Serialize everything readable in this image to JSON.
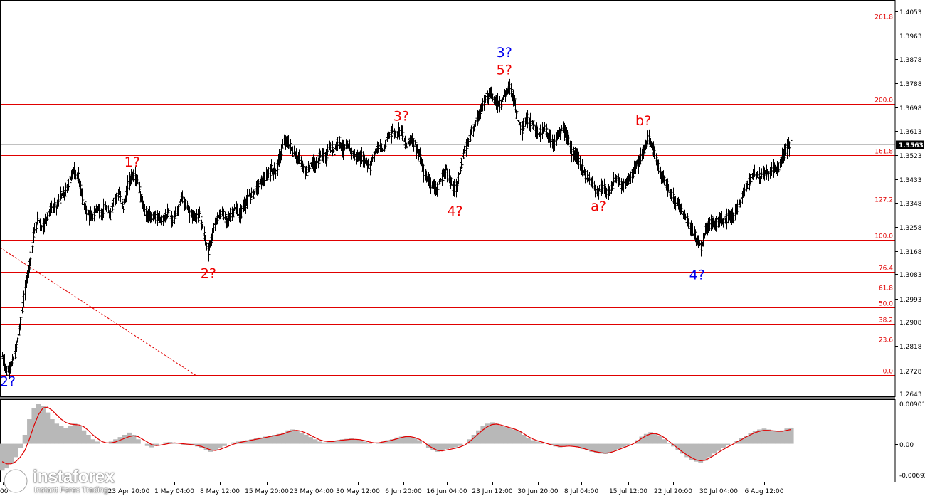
{
  "chart_data": {
    "type": "line",
    "symbol_style": "ohlc-bars",
    "price_axis": {
      "min": 1.2643,
      "max": 1.4053,
      "ticks": [
        "1.4053",
        "1.3963",
        "1.3878",
        "1.3788",
        "1.3698",
        "1.3613",
        "1.3523",
        "1.3433",
        "1.3348",
        "1.3258",
        "1.3168",
        "1.3083",
        "1.2993",
        "1.2908",
        "1.2818",
        "1.2728",
        "1.2643"
      ],
      "current_price": "1.3563",
      "current_price_value": 1.3563
    },
    "time_axis": {
      "labels": [
        "00",
        "23 Apr 20:00",
        "1 May 04:00",
        "8 May 12:00",
        "15 May 20:00",
        "23 May 04:00",
        "30 May 12:00",
        "6 Jun 20:00",
        "16 Jun 04:00",
        "23 Jun 12:00",
        "30 Jun 20:00",
        "8 Jul 04:00",
        "15 Jul 12:00",
        "22 Jul 20:00",
        "30 Jul 04:00",
        "6 Aug 12:00"
      ]
    },
    "fibonacci_levels": [
      {
        "label": "0.0",
        "price": 1.271
      },
      {
        "label": "23.6",
        "price": 1.2828
      },
      {
        "label": "38.2",
        "price": 1.2901
      },
      {
        "label": "50.0",
        "price": 1.296
      },
      {
        "label": "61.8",
        "price": 1.3018
      },
      {
        "label": "76.4",
        "price": 1.3092
      },
      {
        "label": "100.0",
        "price": 1.321
      },
      {
        "label": "127.2",
        "price": 1.3345
      },
      {
        "label": "161.8",
        "price": 1.3522
      },
      {
        "label": "200.0",
        "price": 1.3712
      },
      {
        "label": "261.8",
        "price": 1.402
      }
    ],
    "wave_labels": [
      {
        "text": "2?",
        "color": "#0000ee",
        "date_index": 0,
        "price": 1.267
      },
      {
        "text": "1?",
        "color": "#ee0000",
        "date_index": 29,
        "price": 1.348
      },
      {
        "text": "2?",
        "color": "#ee0000",
        "date_index": 46,
        "price": 1.307
      },
      {
        "text": "3?",
        "color": "#ee0000",
        "date_index": 89,
        "price": 1.365
      },
      {
        "text": "4?",
        "color": "#ee0000",
        "date_index": 101,
        "price": 1.33
      },
      {
        "text": "3?",
        "color": "#0000ee",
        "date_index": 112,
        "price": 1.3885
      },
      {
        "text": "5?",
        "color": "#ee0000",
        "date_index": 112,
        "price": 1.382
      },
      {
        "text": "a?",
        "color": "#ee0000",
        "date_index": 133,
        "price": 1.3318
      },
      {
        "text": "b?",
        "color": "#ee0000",
        "date_index": 143,
        "price": 1.3633
      },
      {
        "text": "4?",
        "color": "#0000ee",
        "date_index": 155,
        "price": 1.3065
      }
    ],
    "price_series": [
      1.278,
      1.272,
      1.275,
      1.28,
      1.29,
      1.302,
      1.312,
      1.323,
      1.329,
      1.325,
      1.33,
      1.333,
      1.333,
      1.337,
      1.338,
      1.343,
      1.347,
      1.344,
      1.335,
      1.331,
      1.329,
      1.333,
      1.331,
      1.333,
      1.33,
      1.336,
      1.338,
      1.333,
      1.341,
      1.345,
      1.344,
      1.336,
      1.331,
      1.329,
      1.33,
      1.328,
      1.329,
      1.331,
      1.328,
      1.331,
      1.337,
      1.334,
      1.331,
      1.329,
      1.33,
      1.323,
      1.317,
      1.324,
      1.329,
      1.331,
      1.328,
      1.33,
      1.333,
      1.33,
      1.334,
      1.337,
      1.338,
      1.341,
      1.343,
      1.344,
      1.347,
      1.346,
      1.352,
      1.358,
      1.356,
      1.353,
      1.351,
      1.348,
      1.346,
      1.35,
      1.348,
      1.353,
      1.351,
      1.355,
      1.354,
      1.358,
      1.354,
      1.356,
      1.353,
      1.351,
      1.352,
      1.35,
      1.348,
      1.353,
      1.356,
      1.354,
      1.359,
      1.361,
      1.36,
      1.362,
      1.355,
      1.358,
      1.357,
      1.352,
      1.346,
      1.343,
      1.341,
      1.34,
      1.344,
      1.347,
      1.342,
      1.339,
      1.346,
      1.353,
      1.358,
      1.362,
      1.366,
      1.37,
      1.374,
      1.375,
      1.372,
      1.371,
      1.374,
      1.378,
      1.374,
      1.365,
      1.362,
      1.366,
      1.364,
      1.362,
      1.36,
      1.362,
      1.359,
      1.356,
      1.36,
      1.362,
      1.358,
      1.354,
      1.352,
      1.348,
      1.345,
      1.343,
      1.34,
      1.339,
      1.341,
      1.338,
      1.341,
      1.344,
      1.341,
      1.342,
      1.344,
      1.347,
      1.35,
      1.354,
      1.358,
      1.355,
      1.35,
      1.344,
      1.342,
      1.338,
      1.335,
      1.334,
      1.33,
      1.327,
      1.324,
      1.321,
      1.318,
      1.325,
      1.328,
      1.327,
      1.329,
      1.328,
      1.33,
      1.329,
      1.333,
      1.337,
      1.341,
      1.344,
      1.346,
      1.344,
      1.346,
      1.345,
      1.348,
      1.347,
      1.352,
      1.355,
      1.3563
    ],
    "oscillator": {
      "axis_labels": [
        "0.00901",
        "0.00",
        "-0.00692"
      ],
      "max": 0.00901,
      "min": -0.00692,
      "histogram": [
        -0.006,
        -0.0055,
        -0.0045,
        -0.003,
        -0.001,
        0.002,
        0.0055,
        0.008,
        0.009,
        0.0085,
        0.007,
        0.0055,
        0.0045,
        0.004,
        0.0035,
        0.004,
        0.0045,
        0.004,
        0.003,
        0.002,
        0.001,
        0.0005,
        0.0,
        0.0,
        0.0005,
        0.001,
        0.0015,
        0.002,
        0.0025,
        0.002,
        0.001,
        0.0,
        -0.0005,
        -0.0008,
        -0.0005,
        0.0,
        0.0003,
        0.0004,
        0.0002,
        0.0,
        -0.0002,
        -0.0003,
        -0.0004,
        -0.0006,
        -0.001,
        -0.0015,
        -0.0018,
        -0.0015,
        -0.001,
        -0.0005,
        0.0,
        0.0003,
        0.0005,
        0.0006,
        0.0008,
        0.001,
        0.0012,
        0.0014,
        0.0016,
        0.0018,
        0.002,
        0.0022,
        0.0025,
        0.003,
        0.0032,
        0.003,
        0.0025,
        0.002,
        0.0015,
        0.001,
        0.0005,
        0.0003,
        0.0004,
        0.0006,
        0.0008,
        0.001,
        0.0011,
        0.0012,
        0.001,
        0.0008,
        0.0005,
        0.0002,
        0.0,
        0.0002,
        0.0005,
        0.0008,
        0.001,
        0.0014,
        0.0016,
        0.0018,
        0.0016,
        0.0012,
        0.0008,
        0.0,
        -0.001,
        -0.0015,
        -0.0018,
        -0.0016,
        -0.0012,
        -0.001,
        -0.0008,
        -0.0005,
        0.0,
        0.001,
        0.002,
        0.003,
        0.004,
        0.0045,
        0.0048,
        0.0045,
        0.004,
        0.0038,
        0.0035,
        0.0032,
        0.0028,
        0.002,
        0.0012,
        0.0008,
        0.0005,
        0.0003,
        0.0,
        -0.0003,
        -0.0006,
        -0.0008,
        -0.0006,
        -0.0004,
        -0.0006,
        -0.0008,
        -0.0012,
        -0.0015,
        -0.0018,
        -0.002,
        -0.0022,
        -0.0023,
        -0.002,
        -0.0016,
        -0.0012,
        -0.0008,
        -0.0004,
        0.0,
        0.0008,
        0.0016,
        0.0022,
        0.0026,
        0.0024,
        0.0018,
        0.001,
        0.0002,
        -0.0006,
        -0.0014,
        -0.0022,
        -0.003,
        -0.0036,
        -0.004,
        -0.0042,
        -0.0038,
        -0.003,
        -0.0022,
        -0.0016,
        -0.001,
        -0.0004,
        0.0,
        0.0006,
        0.0012,
        0.0018,
        0.0024,
        0.0028,
        0.0032,
        0.0034,
        0.0032,
        0.003,
        0.0028,
        0.003,
        0.0034,
        0.0036
      ],
      "signal": [
        -0.004,
        -0.0045,
        -0.0045,
        -0.004,
        -0.003,
        -0.0015,
        0.001,
        0.004,
        0.0065,
        0.008,
        0.0082,
        0.0075,
        0.0065,
        0.0055,
        0.0048,
        0.0044,
        0.0043,
        0.0042,
        0.0038,
        0.003,
        0.002,
        0.0012,
        0.0005,
        0.0002,
        0.0002,
        0.0004,
        0.0008,
        0.0012,
        0.0016,
        0.0018,
        0.0016,
        0.001,
        0.0004,
        -0.0002,
        -0.0004,
        -0.0003,
        -0.0001,
        0.0001,
        0.0002,
        0.0001,
        0.0,
        -0.0001,
        -0.0002,
        -0.0004,
        -0.0006,
        -0.001,
        -0.0014,
        -0.0015,
        -0.0013,
        -0.0009,
        -0.0005,
        -0.0001,
        0.0002,
        0.0004,
        0.0006,
        0.0008,
        0.001,
        0.0012,
        0.0014,
        0.0016,
        0.0018,
        0.002,
        0.0022,
        0.0026,
        0.0029,
        0.003,
        0.0028,
        0.0024,
        0.0019,
        0.0014,
        0.0009,
        0.0006,
        0.0005,
        0.0005,
        0.0007,
        0.0008,
        0.0009,
        0.001,
        0.001,
        0.0009,
        0.0007,
        0.0004,
        0.0002,
        0.0002,
        0.0004,
        0.0006,
        0.0008,
        0.0011,
        0.0014,
        0.0016,
        0.0016,
        0.0014,
        0.001,
        0.0004,
        -0.0004,
        -0.001,
        -0.0015,
        -0.0016,
        -0.0014,
        -0.0012,
        -0.001,
        -0.0007,
        -0.0003,
        0.0004,
        0.0013,
        0.0022,
        0.0031,
        0.0038,
        0.0043,
        0.0044,
        0.0042,
        0.0039,
        0.0036,
        0.0033,
        0.0029,
        0.0023,
        0.0016,
        0.0011,
        0.0007,
        0.0004,
        0.0001,
        -0.0002,
        -0.0004,
        -0.0006,
        -0.0006,
        -0.0005,
        -0.0006,
        -0.0007,
        -0.001,
        -0.0013,
        -0.0016,
        -0.0018,
        -0.002,
        -0.0021,
        -0.002,
        -0.0017,
        -0.0013,
        -0.0009,
        -0.0005,
        -0.0001,
        0.0005,
        0.0012,
        0.0018,
        0.0022,
        0.0023,
        0.002,
        0.0014,
        0.0006,
        -0.0002,
        -0.001,
        -0.0018,
        -0.0025,
        -0.0031,
        -0.0036,
        -0.0038,
        -0.0037,
        -0.0032,
        -0.0026,
        -0.0019,
        -0.0013,
        -0.0007,
        -0.0002,
        0.0004,
        0.0009,
        0.0015,
        0.002,
        0.0025,
        0.0028,
        0.003,
        0.003,
        0.0029,
        0.0028,
        0.0028,
        0.003,
        0.0032
      ]
    }
  },
  "colors": {
    "price_bars": "#000000",
    "fib_line": "#e00000",
    "fib_label": "#e00000",
    "grid_frame": "#000000",
    "histogram": "#b8b8b8",
    "signal_line": "#e00000",
    "current_price_box": "#000000",
    "trend_line": "#e00000"
  },
  "logo": {
    "brand": "instaforex",
    "tagline": "Instant Forex Trading"
  }
}
